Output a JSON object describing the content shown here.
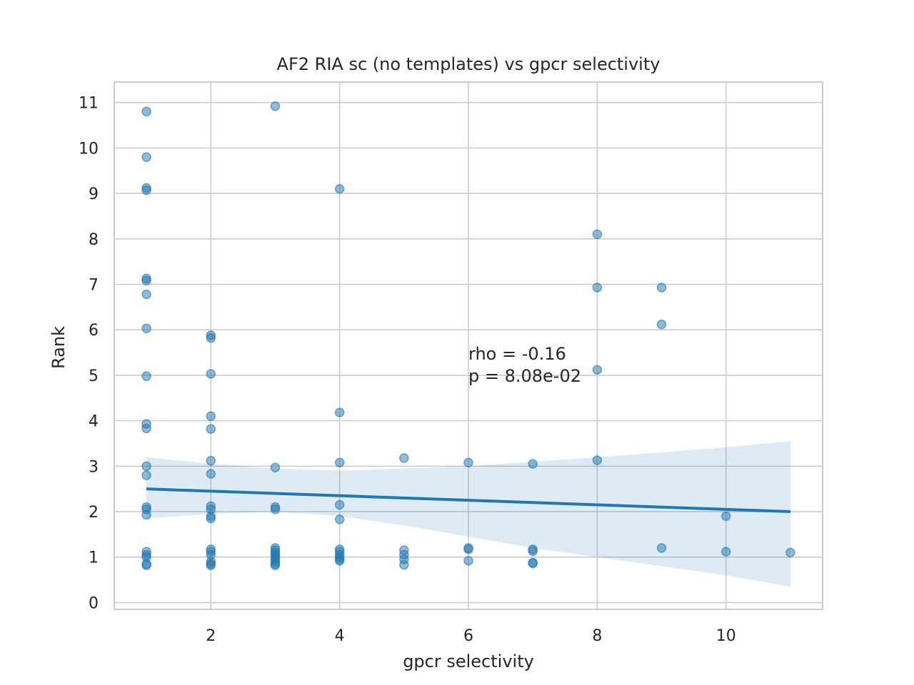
{
  "chart_data": {
    "type": "scatter",
    "title": "AF2 RIA sc (no templates) vs gpcr selectivity",
    "xlabel": "gpcr selectivity",
    "ylabel": "Rank",
    "xlim": [
      0.5,
      11.5
    ],
    "ylim": [
      -0.15,
      11.45
    ],
    "x_ticks": [
      2,
      4,
      6,
      8,
      10
    ],
    "y_ticks": [
      0,
      1,
      2,
      3,
      4,
      5,
      6,
      7,
      8,
      9,
      10,
      11
    ],
    "grid": true,
    "points": [
      {
        "x": 1,
        "y": 10.8
      },
      {
        "x": 1,
        "y": 9.8
      },
      {
        "x": 1,
        "y": 9.12
      },
      {
        "x": 1,
        "y": 9.07
      },
      {
        "x": 1,
        "y": 7.13
      },
      {
        "x": 1,
        "y": 7.08
      },
      {
        "x": 1,
        "y": 6.78
      },
      {
        "x": 1,
        "y": 6.03
      },
      {
        "x": 1,
        "y": 4.98
      },
      {
        "x": 1,
        "y": 3.93
      },
      {
        "x": 1,
        "y": 3.83
      },
      {
        "x": 1,
        "y": 3.0
      },
      {
        "x": 1,
        "y": 2.8
      },
      {
        "x": 1,
        "y": 2.1
      },
      {
        "x": 1,
        "y": 2.05
      },
      {
        "x": 1,
        "y": 1.93
      },
      {
        "x": 1,
        "y": 1.12
      },
      {
        "x": 1,
        "y": 1.05
      },
      {
        "x": 1,
        "y": 1.0
      },
      {
        "x": 1,
        "y": 0.85
      },
      {
        "x": 1,
        "y": 0.82
      },
      {
        "x": 2,
        "y": 5.88
      },
      {
        "x": 2,
        "y": 5.82
      },
      {
        "x": 2,
        "y": 5.03
      },
      {
        "x": 2,
        "y": 4.1
      },
      {
        "x": 2,
        "y": 3.82
      },
      {
        "x": 2,
        "y": 3.12
      },
      {
        "x": 2,
        "y": 2.83
      },
      {
        "x": 2,
        "y": 2.12
      },
      {
        "x": 2,
        "y": 2.05
      },
      {
        "x": 2,
        "y": 1.9
      },
      {
        "x": 2,
        "y": 1.85
      },
      {
        "x": 2,
        "y": 1.17
      },
      {
        "x": 2,
        "y": 1.12
      },
      {
        "x": 2,
        "y": 1.05
      },
      {
        "x": 2,
        "y": 0.9
      },
      {
        "x": 2,
        "y": 0.85
      },
      {
        "x": 2,
        "y": 0.82
      },
      {
        "x": 3,
        "y": 10.92
      },
      {
        "x": 3,
        "y": 2.97
      },
      {
        "x": 3,
        "y": 2.1
      },
      {
        "x": 3,
        "y": 2.05
      },
      {
        "x": 3,
        "y": 1.2
      },
      {
        "x": 3,
        "y": 1.15
      },
      {
        "x": 3,
        "y": 1.1
      },
      {
        "x": 3,
        "y": 1.05
      },
      {
        "x": 3,
        "y": 1.0
      },
      {
        "x": 3,
        "y": 0.95
      },
      {
        "x": 3,
        "y": 0.9
      },
      {
        "x": 3,
        "y": 0.85
      },
      {
        "x": 3,
        "y": 0.82
      },
      {
        "x": 4,
        "y": 9.1
      },
      {
        "x": 4,
        "y": 4.18
      },
      {
        "x": 4,
        "y": 3.08
      },
      {
        "x": 4,
        "y": 2.15
      },
      {
        "x": 4,
        "y": 1.83
      },
      {
        "x": 4,
        "y": 1.17
      },
      {
        "x": 4,
        "y": 1.12
      },
      {
        "x": 4,
        "y": 1.05
      },
      {
        "x": 4,
        "y": 1.0
      },
      {
        "x": 4,
        "y": 0.95
      },
      {
        "x": 4,
        "y": 0.92
      },
      {
        "x": 5,
        "y": 3.18
      },
      {
        "x": 5,
        "y": 1.15
      },
      {
        "x": 5,
        "y": 1.05
      },
      {
        "x": 5,
        "y": 0.95
      },
      {
        "x": 5,
        "y": 0.83
      },
      {
        "x": 6,
        "y": 3.08
      },
      {
        "x": 6,
        "y": 1.2
      },
      {
        "x": 6,
        "y": 1.17
      },
      {
        "x": 6,
        "y": 0.92
      },
      {
        "x": 7,
        "y": 3.05
      },
      {
        "x": 7,
        "y": 1.17
      },
      {
        "x": 7,
        "y": 1.13
      },
      {
        "x": 7,
        "y": 0.88
      },
      {
        "x": 7,
        "y": 0.86
      },
      {
        "x": 8,
        "y": 8.1
      },
      {
        "x": 8,
        "y": 6.93
      },
      {
        "x": 8,
        "y": 5.12
      },
      {
        "x": 8,
        "y": 3.13
      },
      {
        "x": 9,
        "y": 6.93
      },
      {
        "x": 9,
        "y": 6.12
      },
      {
        "x": 9,
        "y": 1.2
      },
      {
        "x": 10,
        "y": 1.9
      },
      {
        "x": 10,
        "y": 1.12
      },
      {
        "x": 11,
        "y": 1.1
      }
    ],
    "regression": {
      "line": [
        {
          "x": 1,
          "y": 2.5
        },
        {
          "x": 11,
          "y": 2.0
        }
      ],
      "ci_upper": [
        {
          "x": 1,
          "y": 3.2
        },
        {
          "x": 2,
          "y": 3.05
        },
        {
          "x": 3,
          "y": 2.95
        },
        {
          "x": 4,
          "y": 2.9
        },
        {
          "x": 5,
          "y": 2.95
        },
        {
          "x": 6,
          "y": 3.0
        },
        {
          "x": 7,
          "y": 3.1
        },
        {
          "x": 8,
          "y": 3.2
        },
        {
          "x": 9,
          "y": 3.3
        },
        {
          "x": 10,
          "y": 3.42
        },
        {
          "x": 11,
          "y": 3.55
        }
      ],
      "ci_lower": [
        {
          "x": 1,
          "y": 1.85
        },
        {
          "x": 2,
          "y": 1.95
        },
        {
          "x": 3,
          "y": 2.0
        },
        {
          "x": 4,
          "y": 1.9
        },
        {
          "x": 5,
          "y": 1.7
        },
        {
          "x": 6,
          "y": 1.45
        },
        {
          "x": 7,
          "y": 1.2
        },
        {
          "x": 8,
          "y": 1.0
        },
        {
          "x": 9,
          "y": 0.8
        },
        {
          "x": 10,
          "y": 0.6
        },
        {
          "x": 11,
          "y": 0.35
        }
      ]
    },
    "annotation": {
      "lines": [
        "rho = -0.16",
        "p = 8.08e-02"
      ],
      "x": 6,
      "y": 5.0
    }
  }
}
